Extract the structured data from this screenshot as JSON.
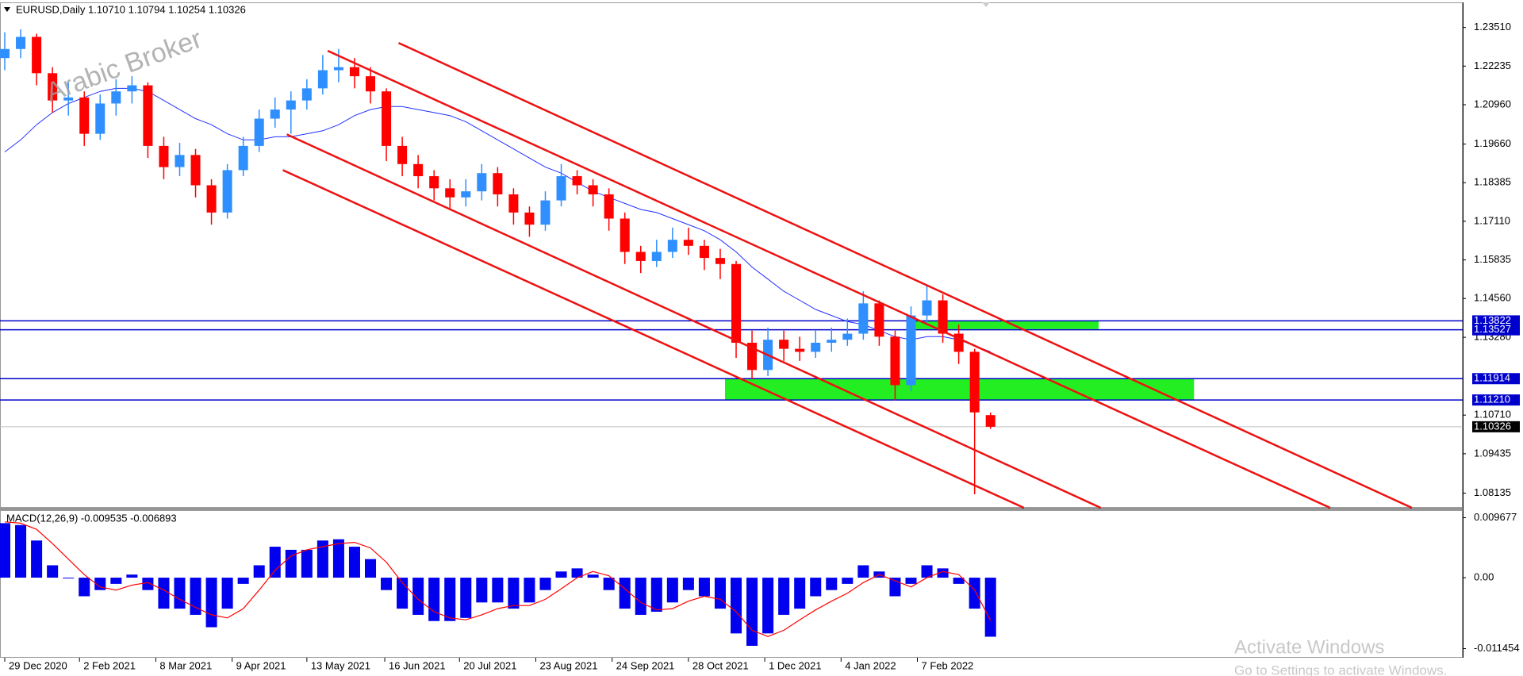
{
  "chart_data": [
    {
      "type": "candlestick",
      "title": "EURUSD,Daily  1.10710 1.10794 1.10254 1.10326",
      "watermark": "Arabic Broker",
      "open": [
        1.225,
        1.228,
        1.232,
        1.22,
        1.211,
        1.212,
        1.2,
        1.21,
        1.214,
        1.216,
        1.196,
        1.189,
        1.193,
        1.183,
        1.174,
        1.188,
        1.196,
        1.205,
        1.208,
        1.211,
        1.215,
        1.221,
        1.222,
        1.219,
        1.214,
        1.196,
        1.19,
        1.186,
        1.182,
        1.179,
        1.181,
        1.187,
        1.18,
        1.174,
        1.17,
        1.178,
        1.186,
        1.183,
        1.18,
        1.172,
        1.161,
        1.158,
        1.161,
        1.165,
        1.163,
        1.159,
        1.157,
        1.131,
        1.122,
        1.132,
        1.129,
        1.128,
        1.131,
        1.132,
        1.134,
        1.144,
        1.133,
        1.117,
        1.14,
        1.145,
        1.134,
        1.128,
        1.1071
      ],
      "high": [
        1.2335,
        1.2345,
        1.233,
        1.222,
        1.217,
        1.214,
        1.213,
        1.218,
        1.219,
        1.217,
        1.199,
        1.197,
        1.195,
        1.185,
        1.19,
        1.199,
        1.208,
        1.212,
        1.214,
        1.218,
        1.226,
        1.228,
        1.225,
        1.222,
        1.215,
        1.199,
        1.193,
        1.188,
        1.185,
        1.185,
        1.19,
        1.189,
        1.182,
        1.176,
        1.181,
        1.19,
        1.188,
        1.185,
        1.182,
        1.174,
        1.163,
        1.165,
        1.169,
        1.169,
        1.165,
        1.162,
        1.158,
        1.135,
        1.136,
        1.135,
        1.133,
        1.135,
        1.136,
        1.139,
        1.148,
        1.145,
        1.135,
        1.143,
        1.15,
        1.147,
        1.137,
        1.129,
        1.10794
      ],
      "low": [
        1.221,
        1.225,
        1.216,
        1.207,
        1.206,
        1.196,
        1.198,
        1.206,
        1.21,
        1.192,
        1.185,
        1.186,
        1.179,
        1.17,
        1.172,
        1.186,
        1.194,
        1.202,
        1.2,
        1.208,
        1.213,
        1.217,
        1.215,
        1.21,
        1.191,
        1.186,
        1.182,
        1.178,
        1.175,
        1.176,
        1.178,
        1.176,
        1.17,
        1.166,
        1.168,
        1.176,
        1.18,
        1.176,
        1.168,
        1.157,
        1.154,
        1.156,
        1.159,
        1.16,
        1.155,
        1.152,
        1.126,
        1.119,
        1.12,
        1.125,
        1.125,
        1.126,
        1.128,
        1.13,
        1.132,
        1.13,
        1.112,
        1.115,
        1.137,
        1.131,
        1.124,
        1.081,
        1.10254
      ],
      "close": [
        1.228,
        1.232,
        1.22,
        1.211,
        1.212,
        1.2,
        1.21,
        1.214,
        1.216,
        1.196,
        1.189,
        1.193,
        1.183,
        1.174,
        1.188,
        1.196,
        1.205,
        1.208,
        1.211,
        1.215,
        1.221,
        1.222,
        1.219,
        1.214,
        1.196,
        1.19,
        1.186,
        1.182,
        1.179,
        1.181,
        1.187,
        1.18,
        1.174,
        1.17,
        1.178,
        1.186,
        1.183,
        1.18,
        1.172,
        1.161,
        1.158,
        1.161,
        1.165,
        1.163,
        1.159,
        1.157,
        1.131,
        1.122,
        1.132,
        1.129,
        1.128,
        1.131,
        1.132,
        1.134,
        1.144,
        1.133,
        1.117,
        1.14,
        1.145,
        1.134,
        1.128,
        1.108,
        1.10326
      ],
      "up_color": "#2f8fff",
      "down_color": "#ff0000",
      "ma_values": [
        1.194,
        1.198,
        1.203,
        1.207,
        1.21,
        1.212,
        1.214,
        1.215,
        1.215,
        1.214,
        1.211,
        1.208,
        1.205,
        1.203,
        1.2,
        1.198,
        1.198,
        1.199,
        1.199,
        1.2,
        1.201,
        1.203,
        1.206,
        1.208,
        1.209,
        1.209,
        1.208,
        1.207,
        1.206,
        1.204,
        1.201,
        1.198,
        1.195,
        1.192,
        1.189,
        1.187,
        1.184,
        1.181,
        1.179,
        1.177,
        1.175,
        1.174,
        1.172,
        1.17,
        1.168,
        1.165,
        1.161,
        1.156,
        1.152,
        1.148,
        1.145,
        1.142,
        1.14,
        1.138,
        1.137,
        1.135,
        1.133,
        1.132,
        1.133,
        1.133,
        1.132,
        1.13,
        1.128
      ],
      "ma_color": "#2030ff",
      "levels": [
        1.13822,
        1.13527,
        1.11914,
        {
          "value": 1.1121,
          "label": "1.11210"
        }
      ],
      "level_color": "#0000cc",
      "last_price": 1.10326,
      "zones": [
        {
          "x": [
            45.3,
            74.8
          ],
          "y": [
            1.1121,
            1.11914
          ]
        },
        {
          "x": [
            57.2,
            68.8
          ],
          "y": [
            1.1355,
            1.1382
          ]
        }
      ],
      "zone_color": "#22ee22",
      "channels": [
        {
          "x": [
            24.77,
            88.5
          ],
          "y": [
            1.23,
            1.0765
          ]
        },
        {
          "x": [
            20.31,
            83.36
          ],
          "y": [
            1.2274,
            1.0765
          ]
        },
        {
          "x": [
            17.74,
            68.93
          ],
          "y": [
            1.1998,
            1.0765
          ]
        },
        {
          "x": [
            17.49,
            64.1
          ],
          "y": [
            1.188,
            1.0765
          ]
        }
      ],
      "channel_color": "#ee1111",
      "xlim": [
        -0.3,
        91.7
      ],
      "xticks": [
        {
          "value": 0,
          "label": "29 Dec 2020"
        },
        {
          "value": 4.7,
          "label": "2 Feb 2021"
        },
        {
          "value": 9.5,
          "label": "8 Mar 2021"
        },
        {
          "value": 14.3,
          "label": "9 Apr 2021"
        },
        {
          "value": 19,
          "label": "13 May 2021"
        },
        {
          "value": 23.9,
          "label": "16 Jun 2021"
        },
        {
          "value": 28.6,
          "label": "20 Jul 2021"
        },
        {
          "value": 33.4,
          "label": "23 Aug 2021"
        },
        {
          "value": 38.2,
          "label": "24 Sep 2021"
        },
        {
          "value": 43,
          "label": "28 Oct 2021"
        },
        {
          "value": 47.8,
          "label": "1 Dec 2021"
        },
        {
          "value": 52.6,
          "label": "4 Jan 2022"
        },
        {
          "value": 57.4,
          "label": "7 Feb 2022"
        }
      ],
      "ylim": [
        1.0765,
        1.24313
      ],
      "yticks": [
        {
          "value": 1.2351,
          "label": "1.23510"
        },
        1.22235,
        {
          "value": 1.2096,
          "label": "1.20960"
        },
        {
          "value": 1.1966,
          "label": "1.19660"
        },
        1.18385,
        {
          "value": 1.1711,
          "label": "1.17110"
        },
        1.15835,
        {
          "value": 1.1456,
          "label": "1.14560"
        },
        {
          "value": 1.1328,
          "label": "1.13280"
        },
        {
          "value": 1.1071,
          "label": "1.10710"
        },
        1.09435,
        1.08135
      ]
    },
    {
      "type": "macd",
      "title": "MACD(12,26,9) -0.009535 -0.006893",
      "values": [
        0.0088,
        0.0085,
        0.006,
        0.002,
        0.0,
        -0.003,
        -0.002,
        -0.001,
        0.0005,
        -0.002,
        -0.005,
        -0.005,
        -0.006,
        -0.008,
        -0.005,
        -0.001,
        0.002,
        0.005,
        0.0045,
        0.0045,
        0.006,
        0.0062,
        0.005,
        0.003,
        -0.002,
        -0.005,
        -0.006,
        -0.007,
        -0.007,
        -0.0065,
        -0.004,
        -0.004,
        -0.005,
        -0.004,
        -0.002,
        0.001,
        0.0015,
        0.0005,
        -0.002,
        -0.005,
        -0.006,
        -0.0055,
        -0.004,
        -0.002,
        -0.003,
        -0.005,
        -0.009,
        -0.011,
        -0.009,
        -0.006,
        -0.005,
        -0.003,
        -0.002,
        -0.001,
        0.002,
        0.001,
        -0.003,
        -0.001,
        0.002,
        0.0015,
        -0.001,
        -0.005,
        -0.009535
      ],
      "signal": [
        0.009,
        0.0088,
        0.0078,
        0.0055,
        0.003,
        0.0005,
        -0.0015,
        -0.002,
        -0.0012,
        -0.0008,
        -0.002,
        -0.0035,
        -0.0048,
        -0.006,
        -0.0065,
        -0.005,
        -0.002,
        0.0012,
        0.0035,
        0.0045,
        0.005,
        0.0055,
        0.0057,
        0.0048,
        0.0025,
        -0.0008,
        -0.0035,
        -0.0055,
        -0.0065,
        -0.0068,
        -0.006,
        -0.005,
        -0.0045,
        -0.0045,
        -0.0035,
        -0.0018,
        0.0,
        0.001,
        0.0003,
        -0.0018,
        -0.004,
        -0.0052,
        -0.005,
        -0.0038,
        -0.003,
        -0.0035,
        -0.0055,
        -0.0085,
        -0.0095,
        -0.0085,
        -0.0068,
        -0.0052,
        -0.0038,
        -0.0025,
        -0.0008,
        0.0005,
        -0.0005,
        -0.0015,
        0.0,
        0.001,
        0.0005,
        -0.002,
        -0.006893
      ],
      "color": "#0000ee",
      "signal_color": "#ff0000",
      "ylim": [
        -0.0128,
        0.01077
      ],
      "yticks": [
        0.009677,
        {
          "value": 0,
          "label": "0.00"
        },
        -0.011454
      ]
    },
    {
      "type": "overlay",
      "title": "Activate Windows",
      "subtitle": "Go to Settings to activate Windows."
    }
  ]
}
